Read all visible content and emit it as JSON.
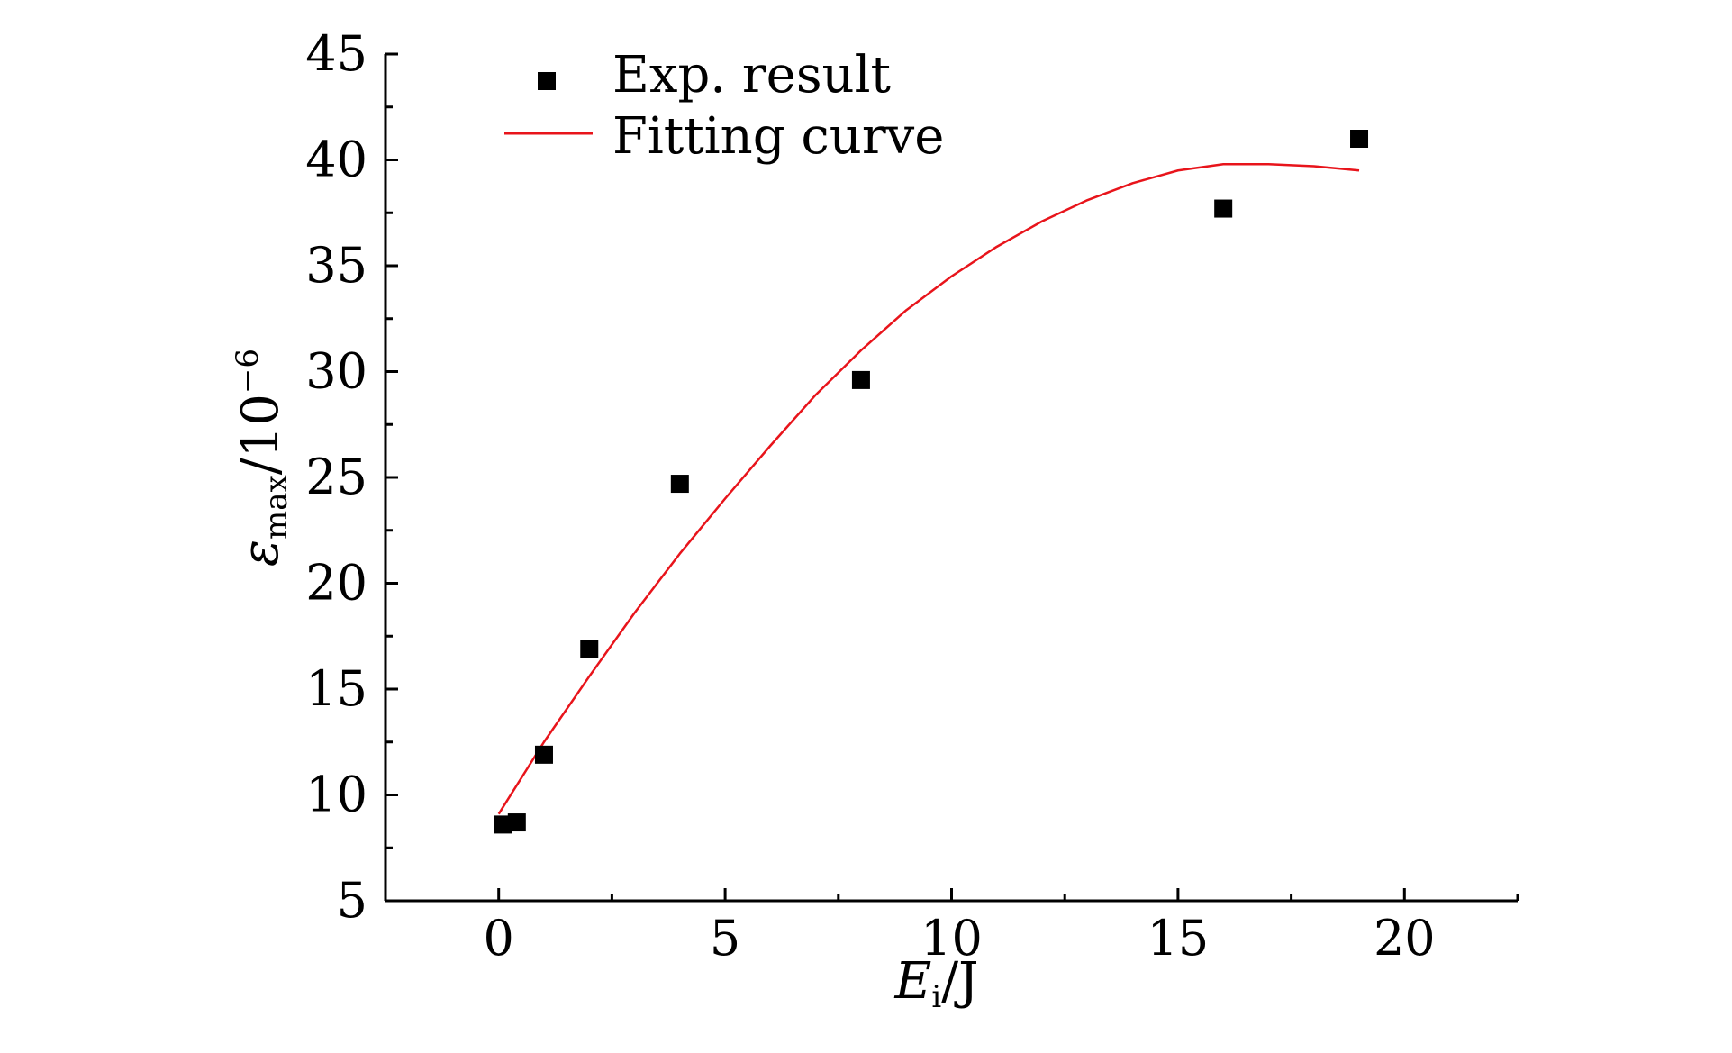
{
  "chart_data": {
    "type": "scatter",
    "title": "",
    "xlabel": {
      "main": "E",
      "sub": "i",
      "unit": "/J"
    },
    "ylabel": {
      "main": "ε",
      "sub": "max",
      "unit": "/10",
      "exp": "−6"
    },
    "xlim": [
      -2.5,
      22.5
    ],
    "ylim": [
      5,
      45
    ],
    "xticks": [
      0,
      5,
      10,
      15,
      20
    ],
    "yticks": [
      5,
      10,
      15,
      20,
      25,
      30,
      35,
      40,
      45
    ],
    "xtick_labels": [
      "0",
      "5",
      "10",
      "15",
      "20"
    ],
    "ytick_labels": [
      "5",
      "10",
      "15",
      "20",
      "25",
      "30",
      "35",
      "40",
      "45"
    ],
    "grid": false,
    "legend_position": "top-left",
    "series": [
      {
        "name": "Exp. result",
        "kind": "scatter",
        "marker": "square",
        "color": "#000000",
        "x": [
          0.1,
          0.4,
          1.0,
          2.0,
          4.0,
          8.0,
          16.0,
          19.0
        ],
        "y": [
          8.6,
          8.7,
          11.9,
          16.9,
          24.7,
          29.6,
          37.7,
          41.0
        ]
      },
      {
        "name": "Fitting curve",
        "kind": "line",
        "color": "#e8141b",
        "x": [
          0,
          1,
          2,
          3,
          4,
          5,
          6,
          7,
          8,
          9,
          10,
          11,
          12,
          13,
          14,
          15,
          16,
          17,
          18,
          19
        ],
        "y": [
          9.1,
          12.5,
          15.6,
          18.6,
          21.4,
          24.0,
          26.5,
          28.9,
          31.0,
          32.9,
          34.5,
          35.9,
          37.1,
          38.1,
          38.9,
          39.5,
          39.8,
          39.8,
          39.7,
          39.5
        ]
      }
    ]
  }
}
